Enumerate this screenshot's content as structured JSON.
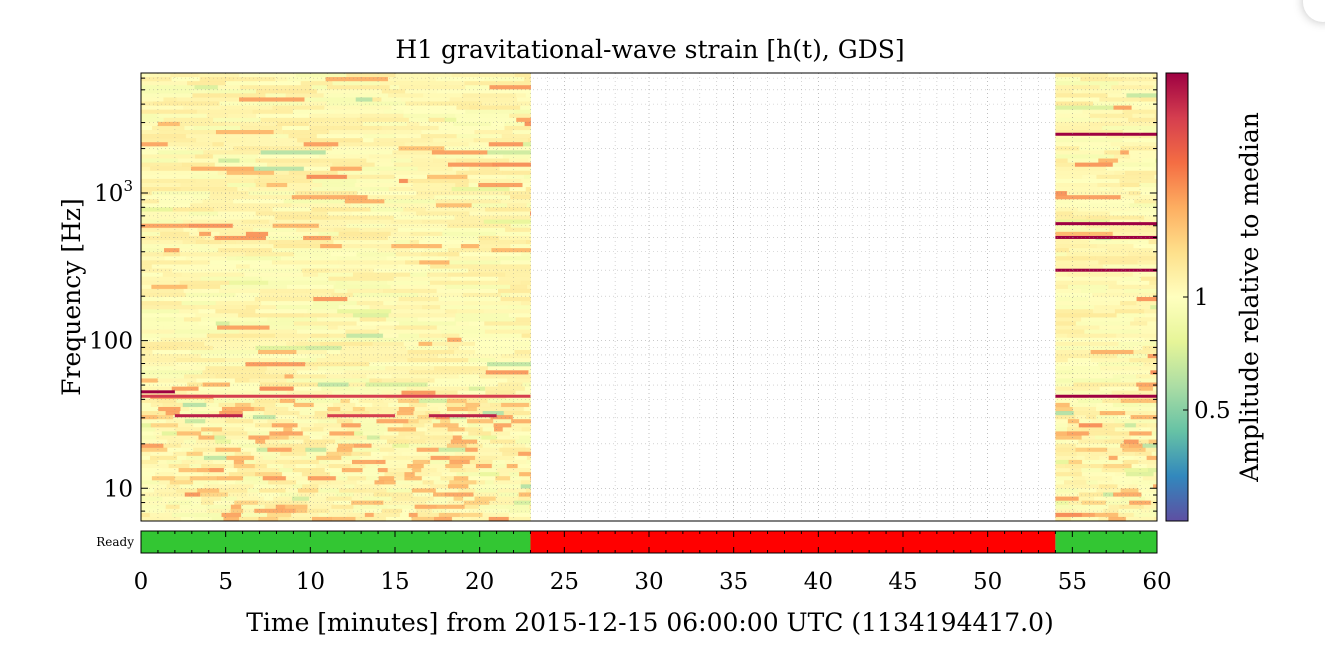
{
  "chart_data": {
    "type": "heatmap",
    "title": "H1 gravitational-wave strain [h(t), GDS]",
    "xlabel": "Time [minutes] from 2015-12-15 06:00:00 UTC (1134194417.0)",
    "ylabel": "Frequency [Hz]",
    "colorbar_label": "Amplitude relative to median",
    "colorbar_ticks": [
      "1",
      "0.5"
    ],
    "colormap": "spectral",
    "xlim": [
      0,
      60
    ],
    "ylim": [
      6,
      6500
    ],
    "y_scale": "log",
    "x_ticks": [
      "0",
      "5",
      "10",
      "15",
      "20",
      "25",
      "30",
      "35",
      "40",
      "45",
      "50",
      "55",
      "60"
    ],
    "y_ticks": [
      "10",
      "100",
      "10^3"
    ],
    "grid": true,
    "data_segments": [
      [
        0,
        23
      ],
      [
        54,
        60
      ]
    ],
    "gap": [
      23,
      54
    ],
    "state_label": "Ready",
    "state_segments": [
      {
        "start": 0,
        "end": 23,
        "color": "#33c633"
      },
      {
        "start": 23,
        "end": 54,
        "color": "#ff0000"
      },
      {
        "start": 54,
        "end": 60,
        "color": "#33c633"
      }
    ],
    "lines": [
      {
        "freq": 45,
        "start": 0,
        "end": 2,
        "level": 1.0
      },
      {
        "freq": 42,
        "start": 0,
        "end": 23,
        "level": 0.9
      },
      {
        "freq": 31,
        "start": 2,
        "end": 6,
        "level": 0.95
      },
      {
        "freq": 31,
        "start": 11,
        "end": 15,
        "level": 0.9
      },
      {
        "freq": 31,
        "start": 17,
        "end": 21,
        "level": 0.95
      },
      {
        "freq": 2500,
        "start": 54,
        "end": 60,
        "level": 1.0
      },
      {
        "freq": 620,
        "start": 54,
        "end": 60,
        "level": 1.0
      },
      {
        "freq": 500,
        "start": 54,
        "end": 60,
        "level": 1.0
      },
      {
        "freq": 300,
        "start": 54,
        "end": 60,
        "level": 1.0
      },
      {
        "freq": 42,
        "start": 54,
        "end": 60,
        "level": 1.0
      }
    ]
  },
  "colors": {
    "background": "#fdfbbd",
    "ready": "#33c633",
    "not_ready": "#ff0000"
  }
}
